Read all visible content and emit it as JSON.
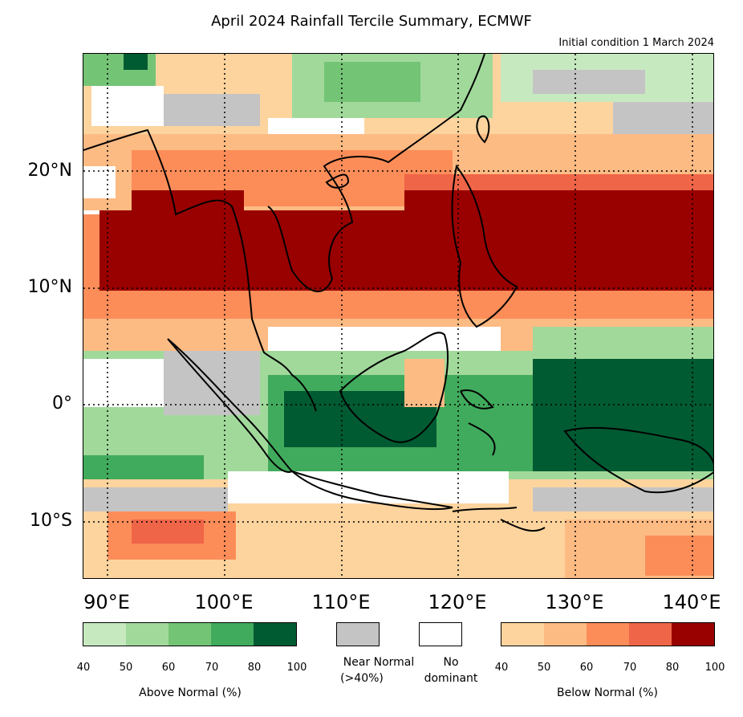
{
  "title": "April 2024 Rainfall Tercile Summary, ECMWF",
  "subtitle": "Initial condition 1 March 2024",
  "map": {
    "latitude_labels": [
      "20°N",
      "10°N",
      "0°",
      "10°S"
    ],
    "longitude_labels": [
      "90°E",
      "100°E",
      "110°E",
      "120°E",
      "130°E",
      "140°E"
    ],
    "extent": {
      "lon_min": 88,
      "lon_max": 142,
      "lat_min": -15,
      "lat_max": 30
    }
  },
  "legend": {
    "above_normal": {
      "label": "Above Normal (%)",
      "ticks": [
        "40",
        "50",
        "60",
        "70",
        "80",
        "100"
      ],
      "colors": [
        "#c7e9c0",
        "#a1d99b",
        "#74c476",
        "#41ab5d",
        "#005a32"
      ]
    },
    "near_normal": {
      "label_line1": "Near Normal",
      "label_line2": "(>40%)",
      "color": "#c4c4c4"
    },
    "no_dominant": {
      "label_line1": "No",
      "label_line2": "dominant",
      "color": "#ffffff"
    },
    "below_normal": {
      "label": "Below Normal (%)",
      "ticks": [
        "40",
        "50",
        "60",
        "70",
        "80",
        "100"
      ],
      "colors": [
        "#fdd49e",
        "#fdbb84",
        "#fc8d59",
        "#ef6548",
        "#990000"
      ]
    }
  }
}
